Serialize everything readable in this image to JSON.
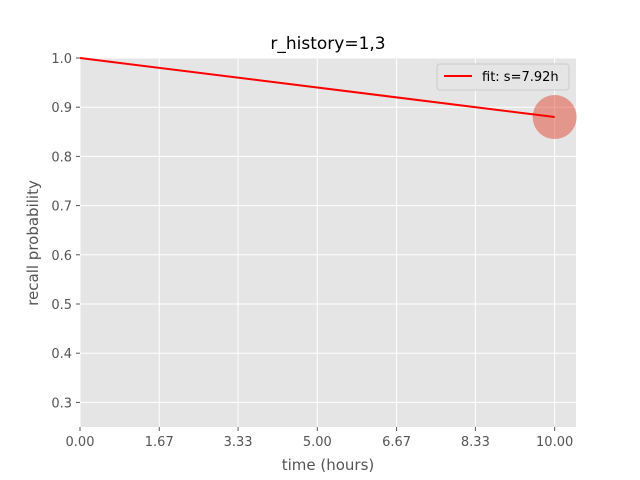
{
  "chart_data": {
    "type": "line",
    "title": "r_history=1,3",
    "xlabel": "time (hours)",
    "ylabel": "recall probability",
    "xlim": [
      0,
      10.45
    ],
    "ylim": [
      0.25,
      1.0
    ],
    "x_ticks": [
      0,
      1.67,
      3.33,
      5.0,
      6.67,
      8.33,
      10.0
    ],
    "x_tick_labels": [
      "0.00",
      "1.67",
      "3.33",
      "5.00",
      "6.67",
      "8.33",
      "10.00"
    ],
    "y_ticks": [
      0.3,
      0.4,
      0.5,
      0.6,
      0.7,
      0.8,
      0.9,
      1.0
    ],
    "y_tick_labels": [
      "0.3",
      "0.4",
      "0.5",
      "0.6",
      "0.7",
      "0.8",
      "0.9",
      "1.0"
    ],
    "grid": true,
    "legend_position": "top-right",
    "series": [
      {
        "name": "fit: s=7.92h",
        "kind": "line",
        "color": "#ff0000",
        "x": [
          0,
          10.0
        ],
        "y": [
          1.0,
          0.88
        ]
      }
    ],
    "observations": [
      {
        "x": 10.0,
        "y": 0.88,
        "color": "#e24a33"
      }
    ]
  },
  "colors": {
    "axes_background": "#e5e5e5",
    "grid": "#ffffff",
    "tick_text": "#555555",
    "title_text": "#000000",
    "label_text": "#555555"
  }
}
